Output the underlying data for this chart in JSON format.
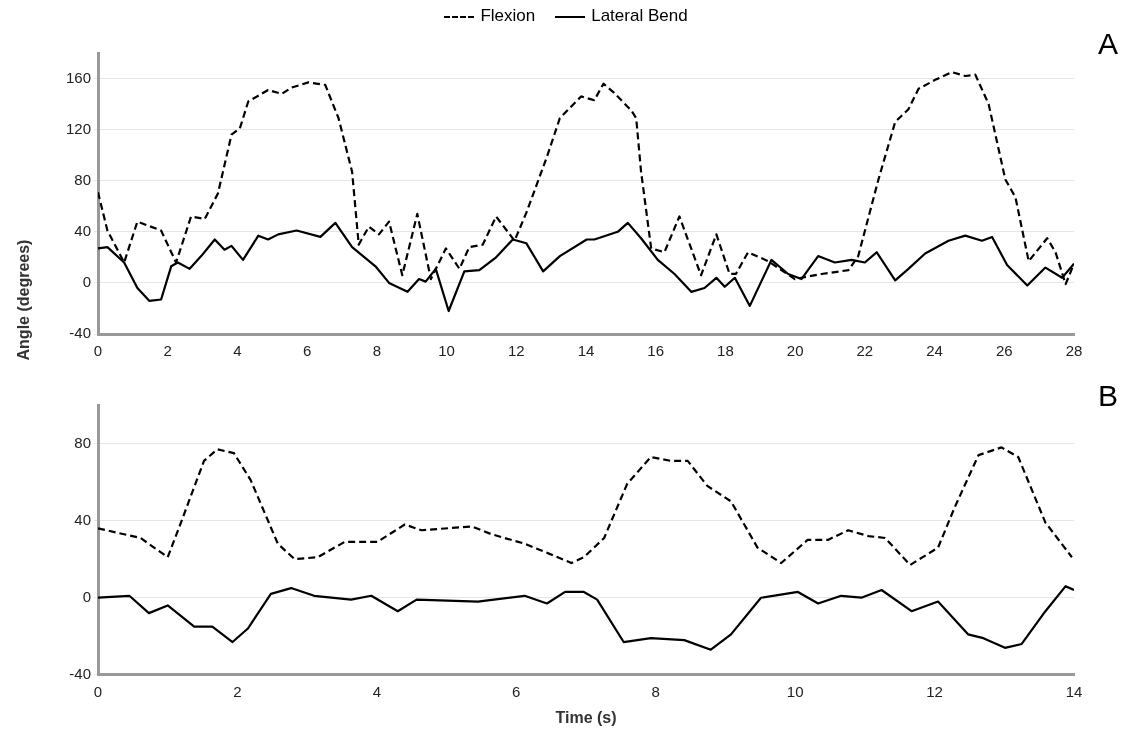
{
  "chart_data": [
    {
      "type": "line",
      "ylabel": "Angle (degrees)",
      "annotations": [
        "A"
      ],
      "legend": "top",
      "grid": "y",
      "xlim": [
        0,
        28
      ],
      "xticks": [
        0,
        2,
        4,
        6,
        8,
        10,
        12,
        14,
        16,
        18,
        20,
        22,
        24,
        26,
        28
      ],
      "ylim": [
        -40,
        180
      ],
      "yticks": [
        -40,
        0,
        40,
        80,
        120,
        160
      ],
      "series": [
        {
          "name": "Flexion",
          "color": "#000000",
          "line_style": "dashed",
          "x": [
            0,
            0.27,
            0.75,
            1.13,
            1.81,
            2.24,
            2.67,
            3.06,
            3.44,
            3.83,
            4.07,
            4.31,
            4.88,
            5.27,
            5.56,
            6.04,
            6.52,
            6.9,
            7.29,
            7.48,
            7.77,
            8.06,
            8.35,
            8.73,
            9.16,
            9.55,
            9.98,
            10.37,
            10.65,
            11.04,
            11.42,
            11.95,
            12.29,
            12.87,
            13.25,
            13.86,
            14.24,
            14.5,
            14.8,
            15.3,
            15.44,
            15.58,
            15.87,
            16.25,
            16.68,
            17.3,
            17.74,
            18.12,
            18.3,
            18.65,
            19.23,
            19.99,
            20.76,
            21.53,
            21.81,
            22.39,
            22.87,
            23.25,
            23.54,
            24.02,
            24.5,
            24.88,
            25.17,
            25.55,
            26.03,
            26.32,
            26.7,
            27.23,
            27.47,
            27.76,
            28
          ],
          "values": [
            71,
            41,
            16,
            48,
            41,
            16,
            52,
            50,
            70,
            116,
            121,
            142,
            151,
            148,
            153,
            157,
            155,
            129,
            87,
            30,
            44,
            38,
            48,
            6,
            54,
            3,
            27,
            11,
            28,
            30,
            52,
            33,
            55,
            98,
            129,
            146,
            143,
            156,
            149,
            135,
            129,
            87,
            27,
            24,
            52,
            6,
            38,
            7,
            7,
            24,
            17,
            3,
            7,
            10,
            21,
            81,
            126,
            136,
            152,
            159,
            165,
            162,
            163,
            140,
            81,
            67,
            17,
            35,
            24,
            -1,
            15
          ]
        },
        {
          "name": "Lateral Bend",
          "color": "#000000",
          "line_style": "solid",
          "x": [
            0,
            0.27,
            0.75,
            1.13,
            1.47,
            1.81,
            2.1,
            2.29,
            2.63,
            2.96,
            3.35,
            3.63,
            3.83,
            4.16,
            4.6,
            4.88,
            5.17,
            5.7,
            6.38,
            6.81,
            7.29,
            7.96,
            8.35,
            8.88,
            9.21,
            9.4,
            9.69,
            10.06,
            10.51,
            10.94,
            11.42,
            11.9,
            12.29,
            12.77,
            13.25,
            14.02,
            14.24,
            14.91,
            15.2,
            15.58,
            16.06,
            16.54,
            17.02,
            17.4,
            17.74,
            17.98,
            18.27,
            18.7,
            19.32,
            19.8,
            20.18,
            20.66,
            21.14,
            21.62,
            22.0,
            22.34,
            22.87,
            23.25,
            23.73,
            24.4,
            24.88,
            25.36,
            25.65,
            26.08,
            26.66,
            27.18,
            27.66,
            28
          ],
          "values": [
            27,
            28,
            16,
            -4,
            -14,
            -13,
            13,
            16,
            11,
            21,
            34,
            26,
            29,
            18,
            37,
            34,
            38,
            41,
            36,
            47,
            28,
            13,
            0,
            -7,
            3,
            1,
            11,
            -22,
            9,
            10,
            20,
            34,
            31,
            9,
            21,
            34,
            34,
            40,
            47,
            35,
            18,
            7,
            -7,
            -4,
            4,
            -3,
            4,
            -18,
            18,
            7,
            3,
            21,
            16,
            18,
            16,
            24,
            2,
            11,
            23,
            33,
            37,
            33,
            36,
            14,
            -2,
            12,
            4,
            15
          ]
        }
      ]
    },
    {
      "type": "line",
      "xlabel": "Time (s)",
      "annotations": [
        "B"
      ],
      "grid": "y",
      "xlim": [
        0,
        14
      ],
      "xticks": [
        0,
        2,
        4,
        6,
        8,
        10,
        12,
        14
      ],
      "ylim": [
        -40,
        100
      ],
      "yticks": [
        -40,
        0,
        40,
        80
      ],
      "series": [
        {
          "color": "#000000",
          "line_style": "dashed",
          "x": [
            0,
            0.61,
            1.0,
            1.19,
            1.52,
            1.71,
            1.95,
            2.19,
            2.58,
            2.82,
            3.15,
            3.54,
            4.01,
            4.4,
            4.64,
            5.36,
            5.64,
            6.12,
            6.46,
            6.79,
            6.97,
            7.26,
            7.59,
            7.93,
            8.22,
            8.46,
            8.74,
            9.08,
            9.46,
            9.8,
            10.18,
            10.47,
            10.76,
            11.05,
            11.29,
            11.65,
            12.05,
            12.29,
            12.63,
            12.96,
            13.2,
            13.59,
            13.97
          ],
          "values": [
            36,
            31,
            21,
            39,
            71,
            77,
            75,
            61,
            28,
            20,
            21,
            29,
            29,
            38,
            35,
            37,
            33,
            28,
            23,
            18,
            21,
            31,
            59,
            73,
            71,
            71,
            58,
            50,
            26,
            18,
            30,
            30,
            35,
            32,
            31,
            17,
            26,
            47,
            74,
            78,
            73,
            39,
            21
          ]
        },
        {
          "color": "#000000",
          "line_style": "solid",
          "x": [
            0,
            0.45,
            0.73,
            1.0,
            1.38,
            1.64,
            1.93,
            2.15,
            2.48,
            2.77,
            3.1,
            3.63,
            3.92,
            4.3,
            4.57,
            5.45,
            6.12,
            6.44,
            6.7,
            6.97,
            7.16,
            7.54,
            7.93,
            8.41,
            8.79,
            9.08,
            9.51,
            10.04,
            10.33,
            10.66,
            10.95,
            11.24,
            11.67,
            12.05,
            12.48,
            12.7,
            13.01,
            13.25,
            13.59,
            13.88,
            14
          ],
          "values": [
            0,
            1,
            -8,
            -4,
            -15,
            -15,
            -23,
            -16,
            2,
            5,
            1,
            -1,
            1,
            -7,
            -1,
            -2,
            1,
            -3,
            3,
            3,
            -1,
            -23,
            -21,
            -22,
            -27,
            -19,
            0,
            3,
            -3,
            1,
            0,
            4,
            -7,
            -2,
            -19,
            -21,
            -26,
            -24,
            -7,
            6,
            4
          ]
        }
      ]
    }
  ]
}
